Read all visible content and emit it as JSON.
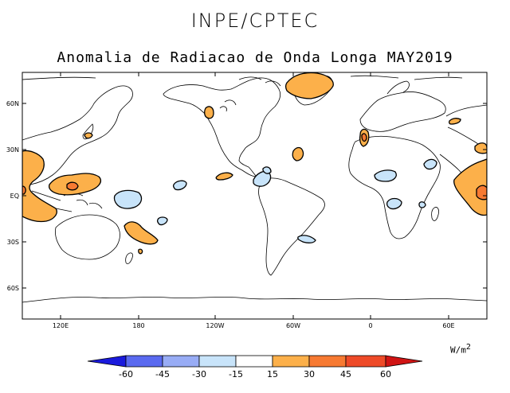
{
  "header": {
    "org": "INPE/CPTEC",
    "title": "Anomalia de Radiacao de Onda Longa MAY2019"
  },
  "map": {
    "lat_ticks": [
      "60N",
      "30N",
      "EQ",
      "30S",
      "60S"
    ],
    "lon_ticks": [
      "120E",
      "180",
      "120W",
      "60W",
      "0",
      "60E"
    ]
  },
  "legend": {
    "units_base": "W/m",
    "units_exp": "2",
    "labels": [
      "-60",
      "-45",
      "-30",
      "-15",
      "15",
      "30",
      "45",
      "60"
    ],
    "colors": [
      "#1a1adc",
      "#5a6af0",
      "#98acf5",
      "#c8e4fa",
      "#ffffff",
      "#fcb04a",
      "#f77a32",
      "#ee4a28",
      "#d01414"
    ]
  },
  "colors": {
    "positive_anomaly": "#fcb04a",
    "strong_positive_anomaly": "#f77a32",
    "negative_anomaly": "#c8e4fa"
  }
}
